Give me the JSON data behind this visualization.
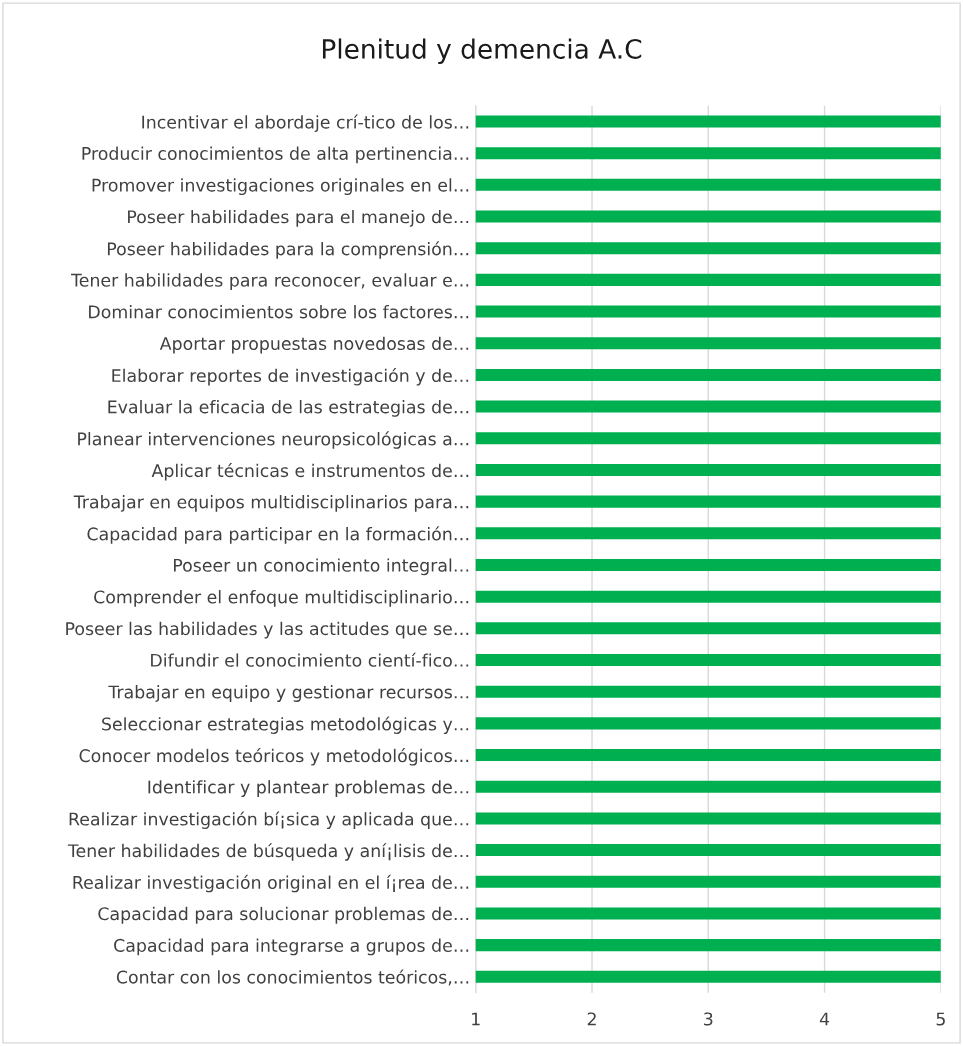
{
  "chart_data": {
    "type": "bar",
    "orientation": "horizontal",
    "title": "Plenitud y demencia A.C",
    "categories": [
      "Incentivar el abordaje crí-tico de los…",
      "Producir conocimientos de alta pertinencia…",
      "Promover investigaciones originales en el…",
      "Poseer habilidades para el manejo de…",
      "Poseer habilidades para la comprensión…",
      "Tener habilidades para reconocer, evaluar e…",
      "Dominar conocimientos sobre los factores…",
      "Aportar propuestas novedosas de…",
      "Elaborar reportes de investigación y de…",
      "Evaluar la eficacia de las estrategias de…",
      "Planear intervenciones neuropsicológicas a…",
      "Aplicar técnicas e instrumentos de…",
      "Trabajar en equipos multidisciplinarios para…",
      "Capacidad para participar en la formación…",
      "Poseer un conocimiento integral…",
      "Comprender el enfoque multidisciplinario…",
      "Poseer las habilidades y las actitudes que se…",
      "Difundir el conocimiento cientí-fico…",
      "Trabajar en equipo y gestionar recursos…",
      "Seleccionar estrategias metodológicas y…",
      "Conocer modelos teóricos y metodológicos…",
      "Identificar y plantear problemas de…",
      "Realizar investigación bí¡sica y aplicada que…",
      "Tener habilidades de búsqueda y aní¡lisis de…",
      "Realizar investigación original en el í¡rea de…",
      "Capacidad para solucionar problemas de…",
      "Capacidad para integrarse a grupos de…",
      "Contar con los conocimientos teóricos,…"
    ],
    "values": [
      5,
      5,
      5,
      5,
      5,
      5,
      5,
      5,
      5,
      5,
      5,
      5,
      5,
      5,
      5,
      5,
      5,
      5,
      5,
      5,
      5,
      5,
      5,
      5,
      5,
      5,
      5,
      5
    ],
    "color": "#00b050",
    "xlim": [
      1,
      5
    ],
    "xticks": [
      1,
      2,
      3,
      4,
      5
    ],
    "grid": "x"
  }
}
